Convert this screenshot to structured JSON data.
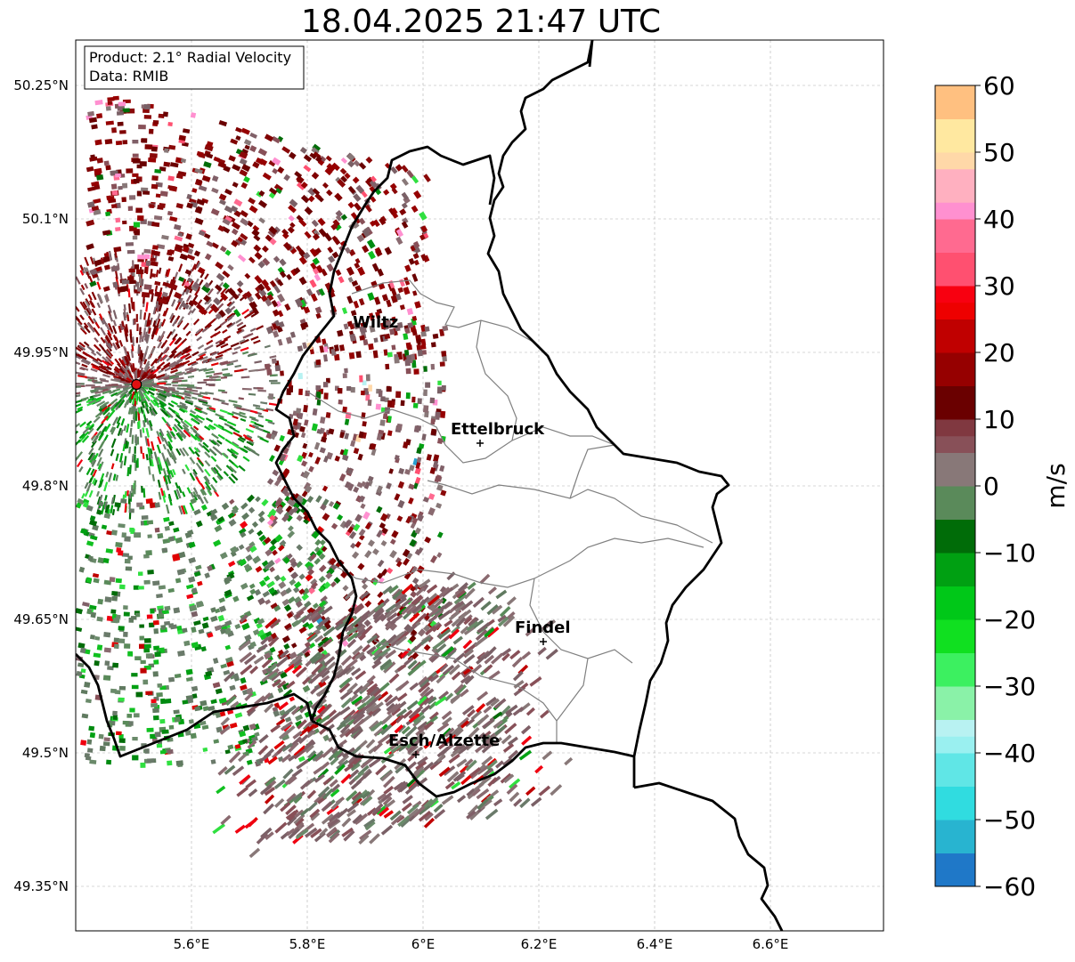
{
  "title": "18.04.2025 21:47 UTC",
  "info_box": {
    "line1": "Product: 2.1° Radial Velocity",
    "line2": "Data: RMIB"
  },
  "map": {
    "lon_range": [
      5.4,
      6.8
    ],
    "lat_range": [
      49.3,
      50.3
    ],
    "lon_ticks": [
      "5.6°E",
      "5.8°E",
      "6°E",
      "6.2°E",
      "6.4°E",
      "6.6°E"
    ],
    "lat_ticks": [
      "50.25°N",
      "50.1°N",
      "49.95°N",
      "49.8°N",
      "49.65°N",
      "49.5°N",
      "49.35°N"
    ],
    "radar_site": {
      "lon": 5.505,
      "lat": 49.914
    },
    "cities": [
      {
        "name": "Wiltz",
        "lon": 5.93,
        "lat": 49.966
      },
      {
        "name": "Ettelbruck",
        "lon": 6.1,
        "lat": 49.85
      },
      {
        "name": "Findel",
        "lon": 6.21,
        "lat": 49.627
      },
      {
        "name": "Esch/Alzette",
        "lon": 5.99,
        "lat": 49.5
      }
    ]
  },
  "colorbar": {
    "unit": "m/s",
    "min": -60,
    "max": 60,
    "tick_labels": [
      "60",
      "50",
      "40",
      "30",
      "20",
      "10",
      "0",
      "−10",
      "−20",
      "−30",
      "−40",
      "−50",
      "−60"
    ],
    "stops": [
      {
        "v": -60,
        "c": "#1f78c8"
      },
      {
        "v": -55,
        "c": "#28b4d0"
      },
      {
        "v": -50,
        "c": "#30dce0"
      },
      {
        "v": -45,
        "c": "#60e6e6"
      },
      {
        "v": -40,
        "c": "#9af0f0"
      },
      {
        "v": -37,
        "c": "#b8f2f2"
      },
      {
        "v": -35,
        "c": "#8af2a8"
      },
      {
        "v": -30,
        "c": "#3cf060"
      },
      {
        "v": -25,
        "c": "#10e020"
      },
      {
        "v": -20,
        "c": "#00c818"
      },
      {
        "v": -15,
        "c": "#00a012"
      },
      {
        "v": -10,
        "c": "#006c08"
      },
      {
        "v": -6,
        "c": "#5a8a5a"
      },
      {
        "v": 0,
        "c": "#887878"
      },
      {
        "v": 5,
        "c": "#885058"
      },
      {
        "v": 8,
        "c": "#803840"
      },
      {
        "v": 10,
        "c": "#6a0000"
      },
      {
        "v": 15,
        "c": "#960000"
      },
      {
        "v": 20,
        "c": "#c00000"
      },
      {
        "v": 25,
        "c": "#ee0000"
      },
      {
        "v": 28,
        "c": "#f80010"
      },
      {
        "v": 30,
        "c": "#ff5070"
      },
      {
        "v": 35,
        "c": "#ff6a90"
      },
      {
        "v": 40,
        "c": "#ff90d0"
      },
      {
        "v": 43,
        "c": "#ffb0c0"
      },
      {
        "v": 47,
        "c": "#ffd8a8"
      },
      {
        "v": 50,
        "c": "#ffe8a0"
      },
      {
        "v": 55,
        "c": "#ffc080"
      },
      {
        "v": 60,
        "c": "#ff9850"
      }
    ]
  },
  "colors": {
    "border": "#000000",
    "district_border": "#808080",
    "grid": "#b0b0b0",
    "radar_site": "#e01010"
  }
}
